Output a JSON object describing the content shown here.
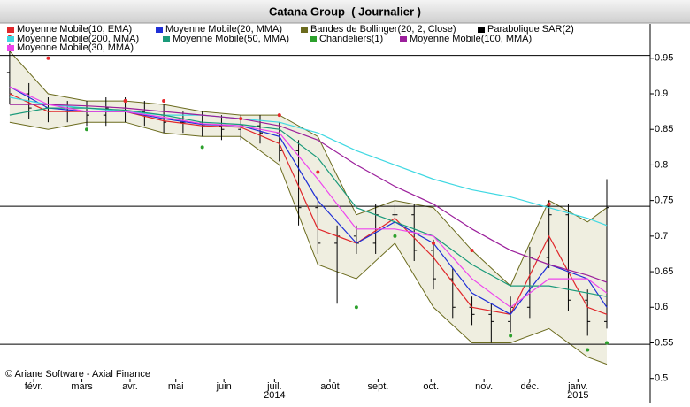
{
  "chart_data": {
    "type": "stock",
    "title": "Catana Group  ( Journalier )",
    "credit": "© Ariane Software - Axial Finance",
    "xlim": [
      0,
      270
    ],
    "xticks": [
      {
        "value": 14,
        "label": "févr."
      },
      {
        "value": 34,
        "label": "mars"
      },
      {
        "value": 54,
        "label": "avr."
      },
      {
        "value": 73,
        "label": "mai"
      },
      {
        "value": 93,
        "label": "juin"
      },
      {
        "value": 114,
        "label": "juil."
      },
      {
        "value": 137,
        "label": "août"
      },
      {
        "value": 157,
        "label": "sept."
      },
      {
        "value": 179,
        "label": "oct."
      },
      {
        "value": 201,
        "label": "nov."
      },
      {
        "value": 220,
        "label": "déc."
      },
      {
        "value": 240,
        "label": "janv."
      }
    ],
    "years": [
      {
        "value": 114,
        "label": "2014"
      },
      {
        "value": 240,
        "label": "2015"
      }
    ],
    "ylim": [
      0.476,
      0.997
    ],
    "yticks": [
      0.5,
      0.55,
      0.6,
      0.65,
      0.7,
      0.75,
      0.8,
      0.85,
      0.9,
      0.95
    ],
    "hlines": [
      0.954,
      0.742,
      0.548
    ],
    "grid": false,
    "series": [
      {
        "name": "Moyenne Mobile(10, EMA)",
        "kind": "line",
        "color": "#e0262a",
        "values": [
          0.9,
          0.875,
          0.875,
          0.875,
          0.862,
          0.855,
          0.853,
          0.83,
          0.71,
          0.69,
          0.725,
          0.67,
          0.6,
          0.59,
          0.7,
          0.6,
          0.59
        ]
      },
      {
        "name": "Moyenne Mobile(20, MMA)",
        "kind": "line",
        "color": "#1f2fd6",
        "values": [
          0.91,
          0.88,
          0.875,
          0.875,
          0.865,
          0.857,
          0.855,
          0.84,
          0.75,
          0.69,
          0.72,
          0.69,
          0.62,
          0.59,
          0.66,
          0.64,
          0.6
        ]
      },
      {
        "name": "Bandes de Bollinger(20, 2, Close)",
        "kind": "band",
        "color": "#6b6b1e",
        "fill": "#efeee0",
        "upper": [
          0.96,
          0.9,
          0.89,
          0.89,
          0.885,
          0.875,
          0.87,
          0.87,
          0.84,
          0.73,
          0.75,
          0.74,
          0.68,
          0.63,
          0.75,
          0.72,
          0.74
        ],
        "lower": [
          0.86,
          0.85,
          0.86,
          0.86,
          0.845,
          0.84,
          0.84,
          0.8,
          0.66,
          0.64,
          0.69,
          0.6,
          0.55,
          0.55,
          0.57,
          0.53,
          0.52
        ]
      },
      {
        "name": "Parabolique SAR(2)",
        "kind": "dots",
        "color": "#000000",
        "above_color": "#e8262a",
        "below_color": "#2ca02c",
        "values": [
          0.98,
          0.95,
          0.85,
          0.89,
          0.89,
          0.825,
          0.865,
          0.87,
          0.79,
          0.6,
          0.7,
          0.69,
          0.68,
          0.56,
          0.745,
          0.54,
          0.55
        ]
      },
      {
        "name": "Moyenne Mobile(200, MMA)",
        "kind": "line",
        "color": "#3fd8e2",
        "values": [
          0.895,
          0.885,
          0.88,
          0.875,
          0.87,
          0.87,
          0.865,
          0.86,
          0.845,
          0.82,
          0.8,
          0.78,
          0.765,
          0.755,
          0.74,
          0.725,
          0.715
        ]
      },
      {
        "name": "Moyenne Mobile(50, MMA)",
        "kind": "line",
        "color": "#1a9a7a",
        "values": [
          0.87,
          0.88,
          0.88,
          0.877,
          0.87,
          0.86,
          0.857,
          0.85,
          0.81,
          0.74,
          0.72,
          0.7,
          0.66,
          0.63,
          0.63,
          0.62,
          0.615
        ]
      },
      {
        "name": "Chandeliers(1)",
        "kind": "ohlc",
        "color": "#000000",
        "legend_color": "#2ca02c",
        "x": [
          4,
          12,
          20,
          28,
          36,
          44,
          52,
          60,
          68,
          76,
          84,
          92,
          100,
          108,
          116,
          124,
          132,
          140,
          148,
          156,
          164,
          172,
          180,
          188,
          196,
          204,
          212,
          220,
          228,
          236,
          244,
          252
        ],
        "open": [
          0.93,
          0.9,
          0.88,
          0.875,
          0.875,
          0.87,
          0.88,
          0.875,
          0.87,
          0.86,
          0.86,
          0.855,
          0.85,
          0.855,
          0.845,
          0.82,
          0.74,
          0.69,
          0.7,
          0.69,
          0.73,
          0.73,
          0.68,
          0.64,
          0.6,
          0.59,
          0.58,
          0.6,
          0.67,
          0.73,
          0.61,
          0.58
        ],
        "high": [
          0.97,
          0.915,
          0.895,
          0.89,
          0.89,
          0.895,
          0.895,
          0.89,
          0.885,
          0.875,
          0.875,
          0.87,
          0.87,
          0.87,
          0.86,
          0.835,
          0.755,
          0.715,
          0.715,
          0.745,
          0.745,
          0.745,
          0.695,
          0.655,
          0.615,
          0.605,
          0.615,
          0.685,
          0.75,
          0.745,
          0.625,
          0.78
        ],
        "low": [
          0.885,
          0.865,
          0.86,
          0.86,
          0.855,
          0.855,
          0.86,
          0.855,
          0.845,
          0.845,
          0.84,
          0.835,
          0.835,
          0.83,
          0.805,
          0.715,
          0.675,
          0.605,
          0.675,
          0.675,
          0.715,
          0.665,
          0.625,
          0.585,
          0.575,
          0.55,
          0.565,
          0.585,
          0.655,
          0.595,
          0.56,
          0.57
        ],
        "close": [
          0.9,
          0.88,
          0.875,
          0.875,
          0.87,
          0.88,
          0.875,
          0.87,
          0.86,
          0.86,
          0.855,
          0.85,
          0.855,
          0.845,
          0.82,
          0.74,
          0.69,
          0.7,
          0.69,
          0.73,
          0.73,
          0.68,
          0.64,
          0.6,
          0.59,
          0.58,
          0.6,
          0.67,
          0.73,
          0.61,
          0.58,
          0.74
        ]
      },
      {
        "name": "Moyenne Mobile(100, MMA)",
        "kind": "line",
        "color": "#9b1f9b",
        "values": [
          0.885,
          0.885,
          0.883,
          0.88,
          0.875,
          0.87,
          0.865,
          0.855,
          0.835,
          0.8,
          0.77,
          0.745,
          0.71,
          0.68,
          0.66,
          0.645,
          0.635
        ]
      },
      {
        "name": "Moyenne Mobile(30, MMA)",
        "kind": "line",
        "color": "#ee44ee",
        "values": [
          0.91,
          0.885,
          0.875,
          0.875,
          0.867,
          0.858,
          0.855,
          0.845,
          0.78,
          0.71,
          0.71,
          0.7,
          0.64,
          0.6,
          0.64,
          0.64,
          0.62
        ]
      }
    ],
    "x": [
      4,
      20,
      36,
      52,
      68,
      84,
      100,
      116,
      132,
      148,
      164,
      180,
      196,
      212,
      228,
      244,
      252
    ]
  }
}
